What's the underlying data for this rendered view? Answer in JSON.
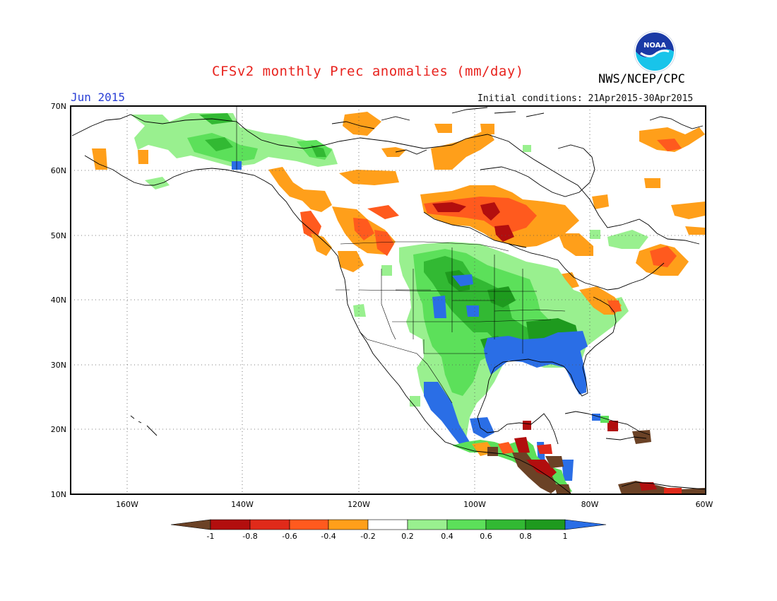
{
  "title": "CFSv2 monthly Prec anomalies (mm/day)",
  "organization": "NWS/NCEP/CPC",
  "logo_text": "NOAA",
  "valid_month": "Jun 2015",
  "initial_conditions": "Initial conditions: 21Apr2015-30Apr2015",
  "lat_labels": [
    "70N",
    "60N",
    "50N",
    "40N",
    "30N",
    "20N",
    "10N"
  ],
  "lon_labels": [
    "160W",
    "140W",
    "120W",
    "100W",
    "80W",
    "60W"
  ],
  "colorbar": {
    "labels": [
      "-1",
      "-0.8",
      "-0.6",
      "-0.4",
      "-0.2",
      "0.2",
      "0.4",
      "0.6",
      "0.8",
      "1"
    ],
    "colors": [
      "#6b4226",
      "#b20e0e",
      "#e02a1a",
      "#ff5a1e",
      "#ff9f1a",
      "#ffffff",
      "#99f08f",
      "#5ce05a",
      "#32b933",
      "#1e9a1e",
      "#2a6ee6"
    ]
  },
  "colors": {
    "title": "#e8231e",
    "month": "#2a3fd6"
  }
}
